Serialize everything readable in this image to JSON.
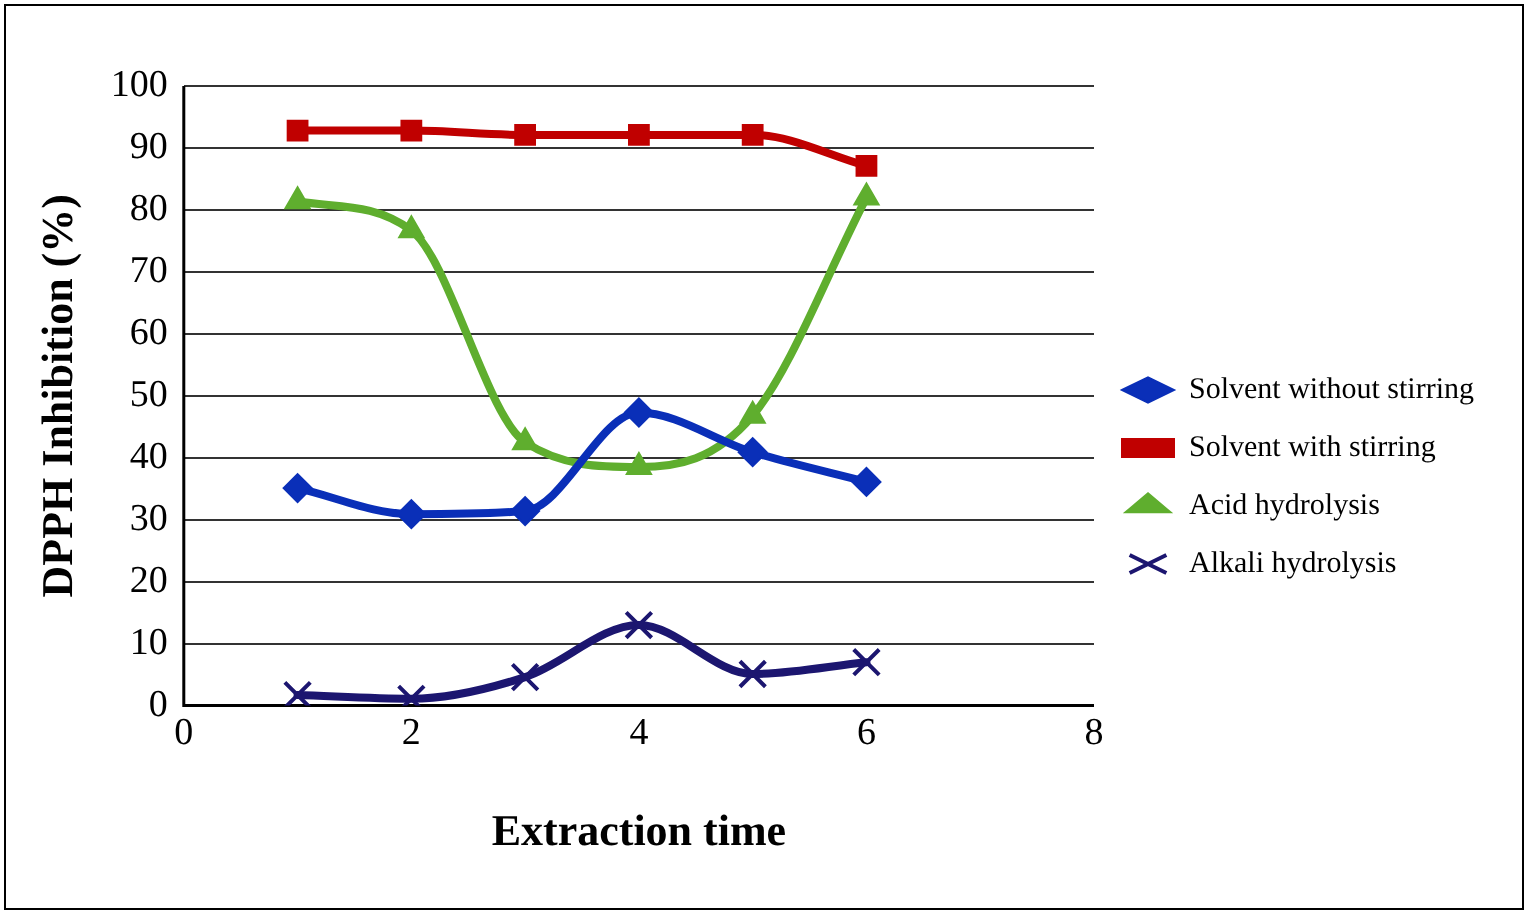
{
  "chart_data": {
    "type": "line",
    "xlabel": "Extraction time",
    "ylabel": "DPPH Inhibition (%)",
    "x": [
      1,
      2,
      3,
      4,
      5,
      6
    ],
    "series": [
      {
        "name": "Solvent without stirring",
        "color": "#0a2fb8",
        "marker": "diamond",
        "values": [
          35.1,
          30.9,
          31.4,
          47.3,
          40.9,
          36.1
        ]
      },
      {
        "name": "Solvent with stirring",
        "color": "#c00000",
        "marker": "square",
        "values": [
          92.8,
          92.8,
          92.1,
          92.1,
          92.1,
          87.1
        ]
      },
      {
        "name": "Acid hydrolysis",
        "color": "#5fae2e",
        "marker": "triangle",
        "values": [
          81.4,
          76.7,
          42.5,
          38.5,
          46.8,
          82
        ]
      },
      {
        "name": "Alkali hydrolysis",
        "color": "#1c1670",
        "marker": "cross",
        "values": [
          1.7,
          1.1,
          4.6,
          13,
          5.1,
          7
        ]
      }
    ],
    "xlim": [
      0,
      8
    ],
    "xticks": [
      0,
      2,
      4,
      6,
      8
    ],
    "ylim": [
      0,
      100
    ],
    "yticks": [
      0,
      10,
      20,
      30,
      40,
      50,
      60,
      70,
      80,
      90,
      100
    ],
    "grid": "y",
    "legend": "right",
    "line_style": "solid"
  }
}
